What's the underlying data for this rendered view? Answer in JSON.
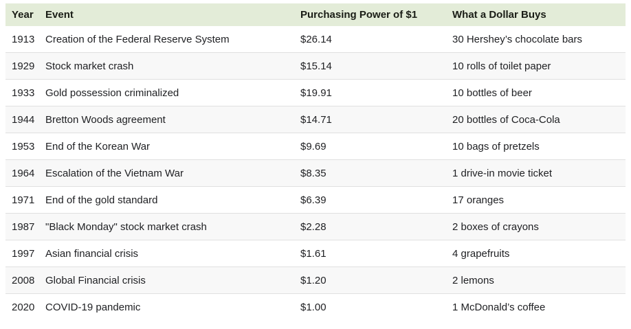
{
  "colors": {
    "header_bg": "#e3ecd8",
    "row_stripe": "#f8f8f8",
    "row_border": "#e0e0e0",
    "text": "#202124",
    "background": "#ffffff"
  },
  "chart_data": {
    "type": "table",
    "columns": [
      "Year",
      "Event",
      "Purchasing Power of $1",
      "What a Dollar Buys"
    ],
    "rows": [
      [
        "1913",
        "Creation of the Federal Reserve System",
        "$26.14",
        "30 Hershey’s chocolate bars"
      ],
      [
        "1929",
        "Stock market crash",
        "$15.14",
        "10 rolls of toilet paper"
      ],
      [
        "1933",
        "Gold possession criminalized",
        "$19.91",
        "10 bottles of beer"
      ],
      [
        "1944",
        "Bretton Woods agreement",
        "$14.71",
        "20 bottles of Coca-Cola"
      ],
      [
        "1953",
        "End of the Korean War",
        "$9.69",
        "10 bags of pretzels"
      ],
      [
        "1964",
        "Escalation of the Vietnam War",
        "$8.35",
        "1 drive-in movie ticket"
      ],
      [
        "1971",
        "End of the gold standard",
        "$6.39",
        "17 oranges"
      ],
      [
        "1987",
        "\"Black Monday\" stock market crash",
        "$2.28",
        "2 boxes of crayons"
      ],
      [
        "1997",
        "Asian financial crisis",
        "$1.61",
        "4 grapefruits"
      ],
      [
        "2008",
        "Global Financial crisis",
        "$1.20",
        "2 lemons"
      ],
      [
        "2020",
        "COVID-19 pandemic",
        "$1.00",
        "1 McDonald’s coffee"
      ]
    ]
  }
}
